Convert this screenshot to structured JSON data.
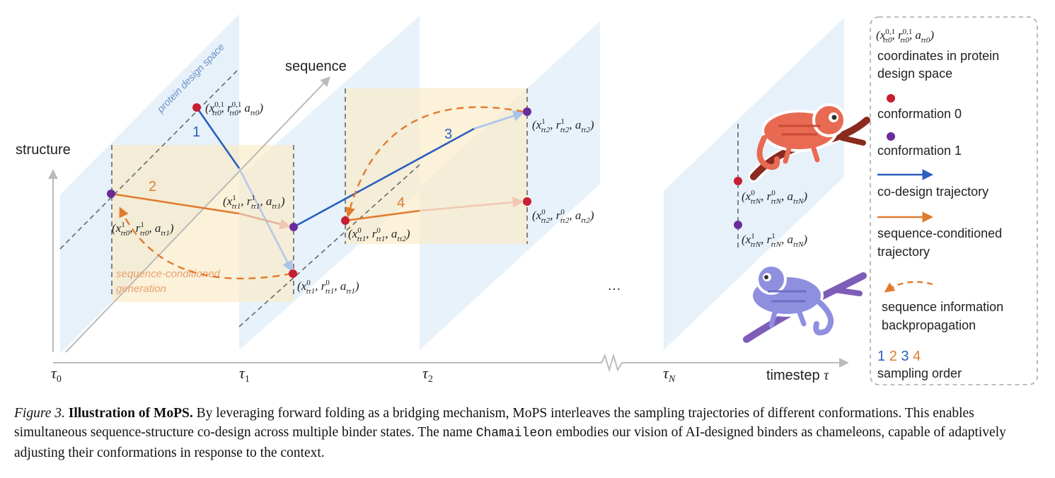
{
  "axes": {
    "structure": "structure",
    "sequence": "sequence",
    "timestep": "timestep",
    "timestep_symbol": "τ",
    "ticks": [
      {
        "base": "τ",
        "sub": "0"
      },
      {
        "base": "τ",
        "sub": "1"
      },
      {
        "base": "τ",
        "sub": "2"
      },
      {
        "base": "τ",
        "sub": "N"
      }
    ]
  },
  "plane_label": "protein design space",
  "generation_label": {
    "line1": "sequence-conditioned",
    "line2": "generation"
  },
  "ellipsis": "…",
  "step_numbers": [
    "1",
    "2",
    "3",
    "4"
  ],
  "coords": {
    "c0": "(x^{0,1}_{tτ0}, r^{0,1}_{tτ0}, a_{tτ0})",
    "c1": "(x^1_{tτ0}, r^1_{tτ0}, a_{tτ1})",
    "c2": "(x^1_{tτ1}, r^1_{tτ1}, a_{tτ1})",
    "c3": "(x^0_{tτ1}, r^0_{tτ1}, a_{tτ1})",
    "c4": "(x^0_{tτ1}, r^0_{tτ1}, a_{tτ2})",
    "c5": "(x^1_{tτ2}, r^1_{tτ2}, a_{tτ2})",
    "c6": "(x^0_{tτ2}, r^0_{tτ2}, a_{tτ2})",
    "c7": "(x^0_{tτN}, r^0_{tτN}, a_{tτN})",
    "c8": "(x^1_{tτN}, r^1_{tτN}, a_{tτN})"
  },
  "legend": {
    "coord_sample": "(x^{0,1}_{tτ0}, r^{0,1}_{tτ0}, a_{tτ0})",
    "coordinates": {
      "line1": "coordinates in protein",
      "line2": "design space"
    },
    "conformation0": "conformation 0",
    "conformation1": "conformation 1",
    "codesign": "co-design trajectory",
    "seqcond": {
      "line1": "sequence-conditioned",
      "line2": "trajectory"
    },
    "backprop": {
      "line1": "sequence information",
      "line2": "backpropagation"
    },
    "order_numbers": [
      "1",
      "2",
      "3",
      "4"
    ],
    "order_label": "sampling order"
  },
  "colors": {
    "plane": "#e3f0fa",
    "highlight": "#fbe9c4",
    "conf0": "#c81e32",
    "conf1": "#6a2c9a",
    "codesign": "#2a5fbf",
    "seqcond": "#e07b30",
    "axis": "#bbbbbb",
    "chameleon_red": "#e86a52",
    "chameleon_purple": "#8f8fe0"
  },
  "icons": [
    "chameleon-red-icon",
    "chameleon-purple-icon"
  ],
  "caption": {
    "label": "Figure 3.",
    "title": "Illustration of MoPS.",
    "part1": "By leveraging forward folding as a bridging mechanism, MoPS interleaves the sampling trajectories of different conformations. This enables simultaneous sequence-structure co-design across multiple binder states. The name",
    "name": "Chamaileon",
    "part2": "embodies our vision of AI-designed binders as chameleons, capable of adaptively adjusting their conformations in response to the context."
  }
}
